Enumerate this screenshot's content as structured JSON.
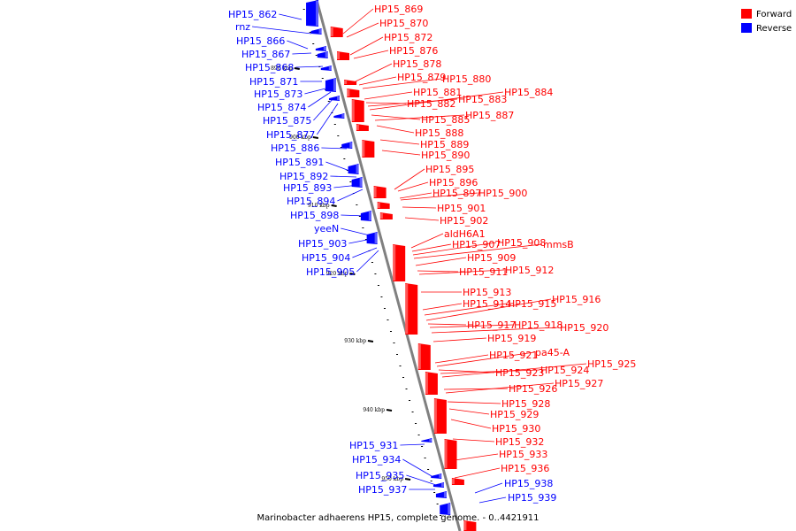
{
  "caption": "Marinobacter adhaerens HP15, complete genome. - 0..4421911",
  "legend": {
    "forward_label": "Forward",
    "reverse_label": "Reverse",
    "forward_color": "#ff0000",
    "reverse_color": "#0000ff"
  },
  "axis_color": "#808080",
  "ticks": [
    {
      "kbp": 890,
      "label": "890 kbp"
    },
    {
      "kbp": 900,
      "label": "900 kbp"
    },
    {
      "kbp": 910,
      "label": "910 kbp"
    },
    {
      "kbp": 920,
      "label": "920 kbp"
    },
    {
      "kbp": 930,
      "label": "930 kbp"
    },
    {
      "kbp": 940,
      "label": "940 kbp"
    },
    {
      "kbp": 950,
      "label": "950 kbp"
    }
  ],
  "reverse_genes": [
    "HP15_862",
    "rnz",
    "HP15_866",
    "HP15_867",
    "HP15_868",
    "HP15_871",
    "HP15_873",
    "HP15_874",
    "HP15_875",
    "HP15_877",
    "HP15_886",
    "HP15_891",
    "HP15_892",
    "HP15_893",
    "HP15_894",
    "HP15_898",
    "yeeN",
    "HP15_903",
    "HP15_904",
    "HP15_905",
    "HP15_931",
    "HP15_934",
    "HP15_935",
    "HP15_937"
  ],
  "forward_genes": [
    "HP15_869",
    "HP15_870",
    "HP15_872",
    "HP15_876",
    "HP15_878",
    "HP15_879",
    "HP15_880",
    "HP15_881",
    "HP15_882",
    "HP15_883",
    "HP15_884",
    "HP15_885",
    "HP15_887",
    "HP15_888",
    "HP15_889",
    "HP15_890",
    "HP15_895",
    "HP15_896",
    "HP15_897",
    "HP15_900",
    "HP15_901",
    "HP15_902",
    "aldH6A1",
    "HP15_907",
    "HP15_908",
    "mmsB",
    "HP15_909",
    "HP15_911",
    "HP15_912",
    "HP15_913",
    "HP15_914",
    "HP15_915",
    "HP15_916",
    "HP15_917",
    "HP15_918",
    "HP15_920",
    "HP15_919",
    "HP15_921",
    "pa45-A",
    "HP15_923",
    "HP15_924",
    "HP15_925",
    "HP15_926",
    "HP15_927",
    "HP15_928",
    "HP15_929",
    "HP15_930",
    "HP15_932",
    "HP15_933",
    "HP15_936"
  ],
  "right_side_reverse": [
    "HP15_938",
    "HP15_939"
  ]
}
